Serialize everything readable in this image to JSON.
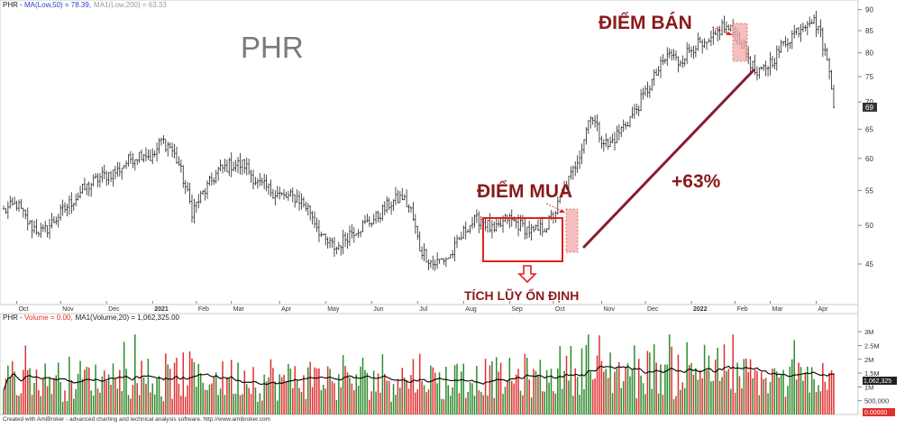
{
  "chart_data": [
    {
      "type": "ohlc",
      "panel": "price",
      "header": {
        "symbol": "PHR",
        "sep": " - ",
        "ma1_text": "MA(Low,50) = 78.39,",
        "ma2_text": "MA1(Low,200) = 63.33"
      },
      "watermark": "PHR",
      "y_ticks": [
        45,
        50,
        55,
        60,
        65,
        70,
        75,
        80,
        85,
        90
      ],
      "ylim": [
        41.5,
        91.5
      ],
      "scale": "log",
      "last_price_label": "69",
      "x_months": [
        {
          "label": "Oct",
          "bar": 6,
          "bold": false
        },
        {
          "label": "Nov",
          "bar": 26,
          "bold": false
        },
        {
          "label": "Dec",
          "bar": 47,
          "bold": false
        },
        {
          "label": "2021",
          "bar": 68,
          "bold": true
        },
        {
          "label": "Feb",
          "bar": 88,
          "bold": false
        },
        {
          "label": "Mar",
          "bar": 104,
          "bold": false
        },
        {
          "label": "Apr",
          "bar": 126,
          "bold": false
        },
        {
          "label": "May",
          "bar": 147,
          "bold": false
        },
        {
          "label": "Jun",
          "bar": 168,
          "bold": false
        },
        {
          "label": "Jul",
          "bar": 189,
          "bold": false
        },
        {
          "label": "Aug",
          "bar": 210,
          "bold": false
        },
        {
          "label": "Sep",
          "bar": 231,
          "bold": false
        },
        {
          "label": "Oct",
          "bar": 251,
          "bold": false
        },
        {
          "label": "Nov",
          "bar": 273,
          "bold": false
        },
        {
          "label": "Dec",
          "bar": 293,
          "bold": false
        },
        {
          "label": "2022",
          "bar": 314,
          "bold": true
        },
        {
          "label": "Feb",
          "bar": 334,
          "bold": false
        },
        {
          "label": "Mar",
          "bar": 350,
          "bold": false
        },
        {
          "label": "Apr",
          "bar": 371,
          "bold": false
        }
      ],
      "anchors": [
        [
          0,
          52
        ],
        [
          6,
          53
        ],
        [
          12,
          50
        ],
        [
          18,
          49
        ],
        [
          24,
          51
        ],
        [
          30,
          53
        ],
        [
          36,
          55
        ],
        [
          44,
          57
        ],
        [
          52,
          58
        ],
        [
          58,
          60
        ],
        [
          64,
          61
        ],
        [
          68,
          60
        ],
        [
          72,
          63
        ],
        [
          76,
          62
        ],
        [
          80,
          59
        ],
        [
          86,
          52
        ],
        [
          92,
          55
        ],
        [
          98,
          58
        ],
        [
          104,
          59
        ],
        [
          110,
          59
        ],
        [
          116,
          56
        ],
        [
          122,
          55
        ],
        [
          128,
          54
        ],
        [
          134,
          54
        ],
        [
          140,
          52
        ],
        [
          146,
          48
        ],
        [
          152,
          47
        ],
        [
          158,
          49
        ],
        [
          164,
          50
        ],
        [
          170,
          51
        ],
        [
          176,
          53
        ],
        [
          182,
          54
        ],
        [
          186,
          52
        ],
        [
          190,
          47
        ],
        [
          196,
          45
        ],
        [
          204,
          46
        ],
        [
          208,
          48
        ],
        [
          212,
          50
        ],
        [
          218,
          51
        ],
        [
          224,
          49
        ],
        [
          230,
          51
        ],
        [
          236,
          50
        ],
        [
          242,
          49
        ],
        [
          248,
          50
        ],
        [
          252,
          52
        ],
        [
          256,
          55
        ],
        [
          260,
          58
        ],
        [
          264,
          62
        ],
        [
          268,
          68
        ],
        [
          272,
          64
        ],
        [
          276,
          62
        ],
        [
          280,
          64
        ],
        [
          284,
          66
        ],
        [
          288,
          68
        ],
        [
          292,
          71
        ],
        [
          296,
          74
        ],
        [
          300,
          77
        ],
        [
          304,
          80
        ],
        [
          308,
          78
        ],
        [
          312,
          80
        ],
        [
          316,
          82
        ],
        [
          320,
          81
        ],
        [
          324,
          83
        ],
        [
          328,
          86
        ],
        [
          332,
          85
        ],
        [
          336,
          83
        ],
        [
          340,
          79
        ],
        [
          344,
          75
        ],
        [
          348,
          77
        ],
        [
          352,
          79
        ],
        [
          356,
          82
        ],
        [
          360,
          84
        ],
        [
          364,
          86
        ],
        [
          368,
          88
        ],
        [
          372,
          86
        ],
        [
          374,
          82
        ],
        [
          377,
          76
        ],
        [
          379,
          69
        ]
      ],
      "annotations": {
        "buy_label": "ĐIỂM MUA",
        "sell_label": "ĐIỂM BÁN",
        "gain_label": "+63%",
        "consolidation_label": "TÍCH LŨY ỔN ĐỊNH"
      },
      "colors": {
        "bars": "#222222",
        "annotation_red": "#8b1a1a",
        "box_red": "#e02020",
        "highlight": "#f2aaaa",
        "watermark": "#7a7a7a",
        "header_blue": "#2b3fd0",
        "header_gray": "#999999"
      }
    },
    {
      "type": "bar",
      "panel": "volume",
      "header": {
        "symbol": "PHR",
        "sep": " - ",
        "volume_text": "Volume = 0.00,",
        "ma_text": "MA1(Volume,20) = 1,062,325.00"
      },
      "y_ticks": [
        {
          "value": 500000,
          "label": "500,000"
        },
        {
          "value": 1000000,
          "label": "1M"
        },
        {
          "value": 1500000,
          "label": "1.5M"
        },
        {
          "value": 2000000,
          "label": "2M"
        },
        {
          "value": 2500000,
          "label": "2.5M"
        },
        {
          "value": 3000000,
          "label": "3M"
        }
      ],
      "ylim": [
        0,
        3200000
      ],
      "ma_label": "1,062,325",
      "last_label": "0.00000",
      "colors": {
        "up": "#2e8b2e",
        "down": "#e03030",
        "ma": "#000000"
      }
    }
  ],
  "footer": "Created with AmiBroker - advanced charting and technical analysis software. http://www.amibroker.com"
}
